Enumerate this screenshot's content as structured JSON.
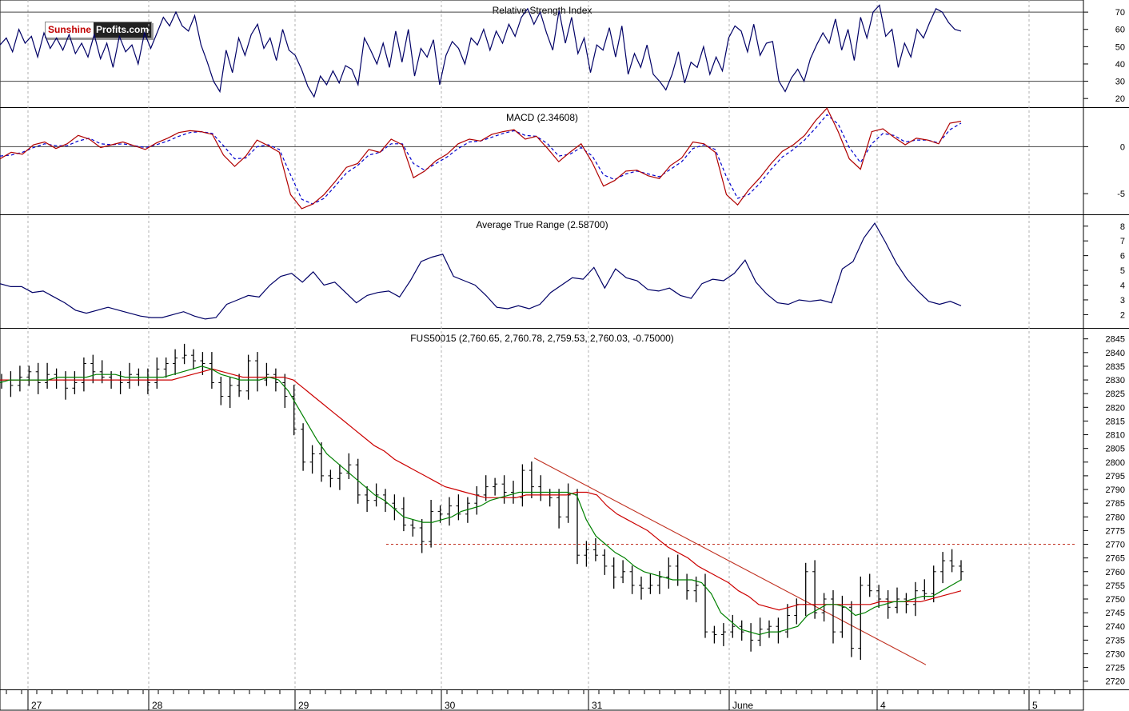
{
  "branding": {
    "logo_part1": "Sunshine",
    "logo_part2": "Profits.com"
  },
  "chart_data": [
    {
      "type": "line",
      "title": "Relative Strength Index",
      "yticks": [
        20,
        30,
        40,
        50,
        60,
        70
      ],
      "ylim": [
        15,
        77
      ],
      "reference_lines": [
        30,
        70
      ],
      "color": "#000066",
      "values": [
        51,
        55,
        47,
        60,
        52,
        56,
        44,
        58,
        49,
        55,
        48,
        57,
        46,
        52,
        44,
        57,
        43,
        52,
        38,
        56,
        47,
        51,
        40,
        58,
        49,
        58,
        67,
        62,
        70,
        62,
        59,
        68,
        51,
        41,
        30,
        24,
        48,
        35,
        55,
        45,
        57,
        63,
        49,
        55,
        42,
        60,
        48,
        45,
        37,
        27,
        21,
        33,
        28,
        36,
        29,
        39,
        37,
        28,
        55,
        48,
        40,
        52,
        38,
        59,
        41,
        60,
        33,
        49,
        44,
        54,
        28,
        45,
        53,
        49,
        40,
        55,
        51,
        60,
        48,
        59,
        52,
        63,
        56,
        67,
        72,
        63,
        70,
        58,
        48,
        71,
        52,
        67,
        46,
        55,
        35,
        51,
        48,
        61,
        44,
        62,
        34,
        46,
        38,
        51,
        34,
        30,
        25,
        34,
        47,
        29,
        41,
        38,
        50,
        34,
        44,
        36,
        55,
        62,
        59,
        47,
        63,
        45,
        52,
        53,
        30,
        24,
        32,
        37,
        30,
        43,
        51,
        58,
        52,
        66,
        48,
        60,
        42,
        67,
        55,
        70,
        74,
        56,
        60,
        38,
        52,
        44,
        60,
        55,
        64,
        72,
        70,
        64,
        60,
        59
      ],
      "x_positions_note": "one point per equally spaced bar from 27 to June 4 session"
    },
    {
      "type": "line",
      "title": "MACD (2.34608)",
      "yticks": [
        -5,
        0
      ],
      "ylim": [
        -7.2,
        4.2
      ],
      "reference_lines": [
        0
      ],
      "series": [
        {
          "name": "",
          "color": "#b00000",
          "values": [
            -1.3,
            -0.6,
            -0.8,
            0.2,
            0.5,
            -0.2,
            0.3,
            1.2,
            0.8,
            -0.1,
            0.2,
            0.5,
            0.1,
            -0.3,
            0.4,
            0.9,
            1.5,
            1.7,
            1.6,
            1.3,
            -0.9,
            -2.1,
            -1.0,
            0.7,
            0.1,
            -0.6,
            -5.1,
            -6.6,
            -6.1,
            -5.1,
            -3.7,
            -2.2,
            -1.8,
            -0.3,
            -0.6,
            0.8,
            0.2,
            -3.3,
            -2.6,
            -1.5,
            -0.8,
            0.3,
            0.8,
            0.6,
            1.3,
            1.6,
            1.8,
            0.8,
            1.1,
            -0.2,
            -1.6,
            -0.6,
            0.3,
            -1.7,
            -4.2,
            -3.6,
            -2.6,
            -2.5,
            -3.1,
            -3.4,
            -2.0,
            -1.2,
            0.5,
            0.3,
            -0.6,
            -5.1,
            -6.2,
            -4.6,
            -3.3,
            -1.8,
            -0.5,
            0.2,
            1.2,
            2.8,
            4.1,
            1.6,
            -1.3,
            -2.4,
            1.6,
            1.9,
            1.0,
            0.2,
            0.9,
            0.7,
            0.3,
            2.5,
            2.7
          ]
        },
        {
          "name": "",
          "color": "#0000cc",
          "values": [
            -1.0,
            -0.9,
            -0.6,
            -0.1,
            0.3,
            0.1,
            0.1,
            0.6,
            0.9,
            0.3,
            0.2,
            0.3,
            0.1,
            -0.1,
            0.2,
            0.6,
            1.1,
            1.5,
            1.6,
            1.4,
            0.1,
            -1.3,
            -1.2,
            0.0,
            0.2,
            -0.3,
            -3.0,
            -5.6,
            -6.1,
            -5.5,
            -4.2,
            -2.8,
            -2.0,
            -0.9,
            -0.6,
            0.3,
            0.3,
            -1.8,
            -2.5,
            -1.8,
            -1.1,
            -0.2,
            0.5,
            0.6,
            1.0,
            1.4,
            1.7,
            1.2,
            1.1,
            0.3,
            -1.0,
            -0.8,
            -0.1,
            -1.0,
            -3.0,
            -3.5,
            -2.9,
            -2.6,
            -2.9,
            -3.2,
            -2.4,
            -1.6,
            -0.2,
            0.2,
            -0.3,
            -3.2,
            -5.5,
            -5.1,
            -3.9,
            -2.4,
            -1.1,
            -0.3,
            0.7,
            2.0,
            3.4,
            2.4,
            -0.1,
            -1.7,
            0.3,
            1.4,
            1.2,
            0.5,
            0.7,
            0.7,
            0.4,
            1.8,
            2.5
          ]
        }
      ]
    },
    {
      "type": "line",
      "title": "Average True Range (2.58700)",
      "yticks": [
        2,
        3,
        4,
        5,
        6,
        7,
        8
      ],
      "ylim": [
        1.1,
        8.8
      ],
      "color": "#000066",
      "values": [
        4.1,
        3.9,
        3.9,
        3.5,
        3.6,
        3.2,
        2.8,
        2.3,
        2.1,
        2.3,
        2.5,
        2.3,
        2.1,
        1.9,
        1.8,
        1.8,
        2.0,
        2.2,
        1.9,
        1.7,
        1.8,
        2.7,
        3.0,
        3.3,
        3.2,
        4.0,
        4.6,
        4.8,
        4.2,
        4.9,
        4.0,
        4.2,
        3.5,
        2.8,
        3.3,
        3.5,
        3.6,
        3.2,
        4.3,
        5.6,
        5.9,
        6.1,
        4.6,
        4.3,
        4.0,
        3.3,
        2.5,
        2.4,
        2.6,
        2.4,
        2.7,
        3.5,
        4.0,
        4.5,
        4.4,
        5.2,
        3.8,
        5.1,
        4.5,
        4.3,
        3.7,
        3.6,
        3.8,
        3.3,
        3.1,
        4.1,
        4.4,
        4.3,
        4.8,
        5.7,
        4.2,
        3.4,
        2.8,
        2.7,
        3.0,
        2.9,
        3.0,
        2.8,
        5.1,
        5.6,
        7.2,
        8.2,
        6.9,
        5.5,
        4.4,
        3.6,
        2.9,
        2.7,
        2.9,
        2.6
      ]
    },
    {
      "type": "candlestick",
      "title": "FUS50015 (2,760.65, 2,760.78, 2,759.53, 2,760.03, -0.75000)",
      "yticks": [
        2720,
        2725,
        2730,
        2735,
        2740,
        2745,
        2750,
        2755,
        2760,
        2765,
        2770,
        2775,
        2780,
        2785,
        2790,
        2795,
        2800,
        2805,
        2810,
        2815,
        2820,
        2825,
        2830,
        2835,
        2840,
        2845
      ],
      "ylim": [
        2717,
        2849
      ],
      "close_series": [
        2830,
        2828,
        2831,
        2833,
        2829,
        2832,
        2830,
        2827,
        2829,
        2836,
        2833,
        2831,
        2830,
        2829,
        2832,
        2831,
        2829,
        2834,
        2836,
        2838,
        2839,
        2837,
        2836,
        2829,
        2824,
        2828,
        2826,
        2837,
        2830,
        2832,
        2829,
        2824,
        2812,
        2800,
        2803,
        2795,
        2794,
        2796,
        2799,
        2788,
        2786,
        2788,
        2785,
        2783,
        2777,
        2776,
        2771,
        2782,
        2781,
        2784,
        2781,
        2785,
        2788,
        2791,
        2792,
        2789,
        2787,
        2797,
        2791,
        2788,
        2787,
        2780,
        2788,
        2766,
        2768,
        2766,
        2762,
        2758,
        2760,
        2755,
        2754,
        2755,
        2758,
        2762,
        2757,
        2753,
        2755,
        2738,
        2737,
        2738,
        2740,
        2738,
        2735,
        2739,
        2740,
        2738,
        2744,
        2748,
        2760,
        2745,
        2750,
        2738,
        2747,
        2732,
        2755,
        2753,
        2750,
        2747,
        2750,
        2748,
        2753,
        2752,
        2760,
        2764,
        2762,
        2760
      ],
      "sma_green": [
        2829,
        2830,
        2830,
        2830,
        2830,
        2830,
        2831,
        2831,
        2831,
        2831,
        2832,
        2832,
        2832,
        2831,
        2831,
        2831,
        2831,
        2831,
        2832,
        2833,
        2834,
        2835,
        2834,
        2832,
        2831,
        2830,
        2830,
        2830,
        2831,
        2830,
        2826,
        2820,
        2814,
        2808,
        2803,
        2800,
        2797,
        2794,
        2791,
        2788,
        2786,
        2783,
        2780,
        2779,
        2778,
        2778,
        2779,
        2780,
        2782,
        2783,
        2784,
        2786,
        2787,
        2788,
        2789,
        2789,
        2789,
        2789,
        2789,
        2789,
        2788,
        2779,
        2773,
        2770,
        2767,
        2765,
        2762,
        2760,
        2759,
        2758,
        2757,
        2757,
        2757,
        2756,
        2752,
        2745,
        2742,
        2739,
        2738,
        2737,
        2738,
        2738,
        2739,
        2740,
        2744,
        2746,
        2748,
        2748,
        2747,
        2744,
        2745,
        2747,
        2748,
        2749,
        2749,
        2750,
        2751,
        2751,
        2753,
        2755,
        2757
      ],
      "sma_red": [
        2830,
        2830,
        2830,
        2830,
        2830,
        2830,
        2830,
        2830,
        2830,
        2830,
        2830,
        2830,
        2830,
        2830,
        2830,
        2830,
        2830,
        2830,
        2831,
        2832,
        2833,
        2834,
        2833,
        2832,
        2831,
        2831,
        2831,
        2831,
        2831,
        2830,
        2827,
        2824,
        2821,
        2818,
        2815,
        2812,
        2809,
        2806,
        2804,
        2801,
        2799,
        2797,
        2795,
        2793,
        2791,
        2790,
        2789,
        2788,
        2787,
        2787,
        2787,
        2787,
        2788,
        2788,
        2788,
        2788,
        2788,
        2789,
        2789,
        2788,
        2784,
        2781,
        2779,
        2777,
        2775,
        2772,
        2769,
        2767,
        2765,
        2762,
        2760,
        2758,
        2756,
        2753,
        2751,
        2748,
        2747,
        2746,
        2747,
        2748,
        2748,
        2748,
        2748,
        2748,
        2748,
        2748,
        2748,
        2749,
        2749,
        2749,
        2749,
        2749,
        2750,
        2751,
        2752,
        2753
      ],
      "trendline": {
        "start": [
          2801.5,
          "31 session start -0.4 day"
        ],
        "end": [
          2726,
          "June 4 session"
        ],
        "color": "#c03020"
      },
      "support_level": {
        "value": 2770,
        "style": "dashed",
        "color": "#c03020"
      }
    }
  ],
  "x_axis": {
    "labels": [
      "27",
      "28",
      "29",
      "30",
      "31",
      "June",
      "4",
      "5"
    ]
  }
}
